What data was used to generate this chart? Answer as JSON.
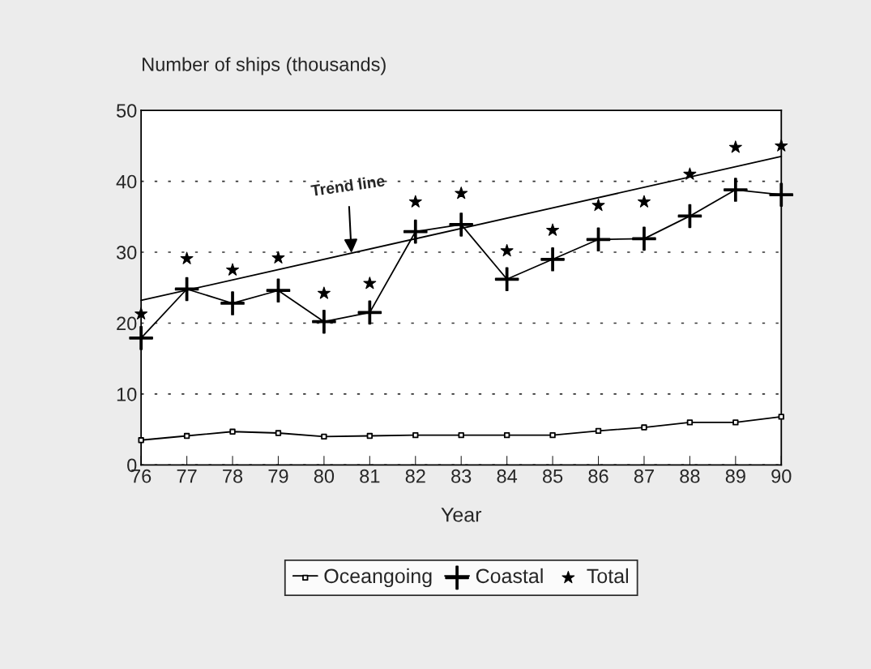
{
  "chart_data": {
    "type": "line",
    "xlabel": "Year",
    "ylabel": "Number of ships (thousands)",
    "x": [
      76,
      77,
      78,
      79,
      80,
      81,
      82,
      83,
      84,
      85,
      86,
      87,
      88,
      89,
      90
    ],
    "series": [
      {
        "name": "Oceangoing",
        "color": "#000000",
        "marker": "square",
        "values": [
          3.5,
          4.1,
          4.7,
          4.5,
          4.0,
          4.1,
          4.2,
          4.2,
          4.2,
          4.2,
          4.8,
          5.3,
          6.0,
          6.0,
          6.8
        ]
      },
      {
        "name": "Coastal",
        "color": "#000000",
        "marker": "cross",
        "values": [
          17.9,
          24.8,
          22.8,
          24.6,
          20.2,
          21.5,
          32.9,
          33.9,
          26.2,
          29.0,
          31.8,
          31.9,
          35.1,
          38.8,
          38.1
        ]
      },
      {
        "name": "Total",
        "type": "scatter",
        "color": "#000000",
        "marker": "star",
        "values": [
          21.3,
          29.1,
          27.5,
          29.2,
          24.2,
          25.6,
          37.1,
          38.3,
          30.2,
          33.1,
          36.6,
          37.1,
          41.0,
          44.8,
          45.0
        ]
      },
      {
        "type": "line",
        "color": "#000000",
        "marker": "none",
        "x": [
          76,
          90
        ],
        "values": [
          23.2,
          43.5
        ]
      }
    ],
    "annotations": [
      {
        "text": "Trend line",
        "x": 80.6,
        "y": 29.9
      }
    ],
    "xlim": [
      76,
      90
    ],
    "xticks": [
      76,
      77,
      78,
      79,
      80,
      81,
      82,
      83,
      84,
      85,
      86,
      87,
      88,
      89,
      90
    ],
    "ylim": [
      0,
      50
    ],
    "yticks": [
      0,
      10,
      20,
      30,
      40,
      50
    ],
    "grid": "y",
    "legend": "bottom"
  }
}
